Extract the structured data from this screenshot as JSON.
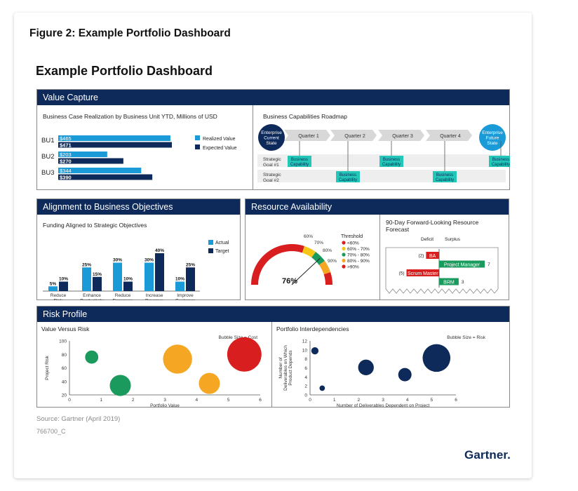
{
  "figure_title": "Figure 2: Example Portfolio Dashboard",
  "dashboard_title": "Example Portfolio Dashboard",
  "source": "Source: Gartner (April 2019)",
  "doc_id": "766700_C",
  "logo": "Gartner",
  "colors": {
    "navy": "#0d2a5a",
    "light_blue": "#1a9ad6",
    "teal": "#22c7b8",
    "green": "#1a9a5c",
    "red": "#d81e1e",
    "orange": "#f5a623",
    "yellow": "#f5c518",
    "gray_band": "#eeeeee"
  },
  "panels": {
    "value_capture": {
      "title": "Value Capture"
    },
    "alignment": {
      "title": "Alignment to Business Objectives"
    },
    "resource": {
      "title": "Resource Availability"
    },
    "risk": {
      "title": "Risk Profile"
    }
  },
  "chart_data": [
    {
      "id": "business_case_realization",
      "type": "bar",
      "orientation": "horizontal",
      "title": "Business Case Realization by Business Unit YTD, Millions of USD",
      "categories": [
        "BU1",
        "BU2",
        "BU3"
      ],
      "series": [
        {
          "name": "Realized Value",
          "values": [
            465,
            203,
            344
          ],
          "labels": [
            "$465",
            "$203",
            "$344"
          ],
          "color": "#1a9ad6"
        },
        {
          "name": "Expected Value",
          "values": [
            471,
            270,
            390
          ],
          "labels": [
            "$471",
            "$270",
            "$390"
          ],
          "color": "#0d2a5a"
        }
      ],
      "xlim": [
        0,
        471
      ],
      "legend": "right"
    },
    {
      "id": "capabilities_roadmap",
      "type": "table",
      "title": "Business Capabilities Roadmap",
      "start_label": [
        "Enterprise",
        "Current",
        "State"
      ],
      "end_label": [
        "Enterprise",
        "Future",
        "State"
      ],
      "quarters": [
        "Quarter 1",
        "Quarter 2",
        "Quarter 3",
        "Quarter 4"
      ],
      "goals": [
        {
          "label": [
            "Strategic",
            "Goal #1"
          ],
          "capabilities": [
            {
              "quarter": 1,
              "text": [
                "Business",
                "Capability"
              ]
            },
            {
              "quarter": 2,
              "text": [
                "Business",
                "Capability"
              ]
            },
            {
              "quarter": 4,
              "text": [
                "Business",
                "Capability"
              ]
            }
          ]
        },
        {
          "label": [
            "Strategic",
            "Goal #2"
          ],
          "capabilities": [
            {
              "quarter": 1,
              "text": [
                "Business",
                "Capability"
              ]
            },
            {
              "quarter": 3,
              "text": [
                "Business",
                "Capability"
              ]
            }
          ]
        }
      ]
    },
    {
      "id": "funding_alignment",
      "type": "bar",
      "title": "Funding Aligned to Strategic Objectives",
      "categories": [
        [
          "Reduce",
          "Risk"
        ],
        [
          "Enhance",
          "Productivity"
        ],
        [
          "Reduce",
          "Expenses"
        ],
        [
          "Increase",
          "Revenue"
        ],
        [
          "Improve",
          "Customer",
          "Satisfaction"
        ]
      ],
      "series": [
        {
          "name": "Actual",
          "values": [
            5,
            25,
            30,
            30,
            10
          ],
          "labels": [
            "5%",
            "25%",
            "30%",
            "30%",
            "10%"
          ],
          "color": "#1a9ad6"
        },
        {
          "name": "Target",
          "values": [
            10,
            15,
            10,
            40,
            25
          ],
          "labels": [
            "10%",
            "15%",
            "10%",
            "40%",
            "25%"
          ],
          "color": "#0d2a5a"
        }
      ],
      "ylim": [
        0,
        40
      ],
      "legend": "right"
    },
    {
      "id": "resource_gauge",
      "type": "pie",
      "subtype": "gauge",
      "value": 76,
      "value_label": "76%",
      "ticks": [
        "60%",
        "70%",
        "80%",
        "90%"
      ],
      "legend_title": "Threshold",
      "bands": [
        {
          "label": "<60%",
          "from": 0,
          "to": 60,
          "color": "#d81e1e"
        },
        {
          "label": "60% - 70%",
          "from": 60,
          "to": 70,
          "color": "#f5c518"
        },
        {
          "label": "70% - 80%",
          "from": 70,
          "to": 80,
          "color": "#1a9a5c"
        },
        {
          "label": "80% - 90%",
          "from": 80,
          "to": 90,
          "color": "#f5a623"
        },
        {
          "label": ">90%",
          "from": 90,
          "to": 100,
          "color": "#d81e1e"
        }
      ]
    },
    {
      "id": "resource_forecast",
      "type": "bar",
      "orientation": "horizontal",
      "title": [
        "90-Day Forward-Looking Resource",
        "Forecast"
      ],
      "column_labels": [
        "Deficit",
        "Surplus"
      ],
      "categories": [
        "BA",
        "Project Manager",
        "Scrum Master",
        "BRM"
      ],
      "values": [
        -2,
        7,
        -5,
        3
      ],
      "value_labels": [
        "(2)",
        "7",
        "(5)",
        "3"
      ],
      "colors": {
        "deficit": "#d81e1e",
        "surplus": "#1a9a5c"
      }
    },
    {
      "id": "value_vs_risk",
      "type": "scatter",
      "subtype": "bubble",
      "title": "Value Versus Risk",
      "note": "Bubble Size = Cost",
      "xlabel": "Portfolio Value",
      "ylabel": "Project Risk",
      "xlim": [
        0,
        6
      ],
      "ylim": [
        20,
        100
      ],
      "xticks": [
        0,
        1,
        2,
        3,
        4,
        5,
        6
      ],
      "yticks": [
        20,
        40,
        60,
        80,
        100
      ],
      "points": [
        {
          "x": 0.7,
          "y": 76,
          "size": 2,
          "color": "#1a9a5c"
        },
        {
          "x": 1.6,
          "y": 34,
          "size": 3.2,
          "color": "#1a9a5c"
        },
        {
          "x": 3.4,
          "y": 73,
          "size": 4.4,
          "color": "#f5a623"
        },
        {
          "x": 4.4,
          "y": 37,
          "size": 3.2,
          "color": "#f5a623"
        },
        {
          "x": 5.5,
          "y": 80,
          "size": 5.2,
          "color": "#d81e1e"
        }
      ]
    },
    {
      "id": "portfolio_interdependencies",
      "type": "scatter",
      "subtype": "bubble",
      "title": "Portfolio Interdependencies",
      "note": "Bubble Size = Risk",
      "xlabel": "Number of Deliverables Dependent on Project",
      "ylabel": [
        "Number of",
        "Deliverables on Which",
        "Product Depends"
      ],
      "xlim": [
        0,
        6
      ],
      "ylim": [
        0,
        12
      ],
      "xticks": [
        0,
        1,
        2,
        3,
        4,
        5,
        6
      ],
      "yticks": [
        0,
        2,
        4,
        6,
        8,
        10,
        12
      ],
      "points": [
        {
          "x": 0.2,
          "y": 9.8,
          "size": 1.2,
          "color": "#0d2a5a"
        },
        {
          "x": 0.5,
          "y": 1.5,
          "size": 0.9,
          "color": "#0d2a5a"
        },
        {
          "x": 2.3,
          "y": 6.1,
          "size": 2.6,
          "color": "#0d2a5a"
        },
        {
          "x": 3.9,
          "y": 4.5,
          "size": 2.2,
          "color": "#0d2a5a"
        },
        {
          "x": 5.2,
          "y": 8.2,
          "size": 4.6,
          "color": "#0d2a5a"
        }
      ]
    }
  ]
}
